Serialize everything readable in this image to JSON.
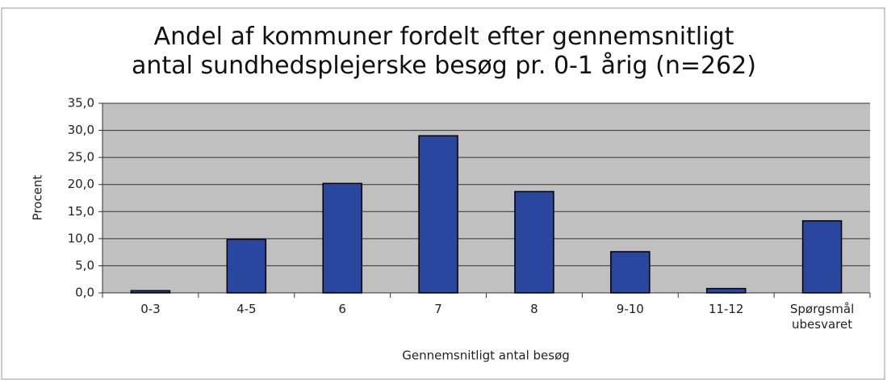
{
  "chart_data": {
    "type": "bar",
    "title": "Andel af kommuner fordelt efter gennemsnitligt antal sundhedsplejerske besøg pr. 0-1 årig (n=262)",
    "y_label": "Procent",
    "x_label": "Gennemsnitligt antal besøg",
    "categories": [
      "0-3",
      "4-5",
      "6",
      "7",
      "8",
      "9-10",
      "11-12",
      "Spørgsmål ubesvaret"
    ],
    "values": [
      0.4,
      9.9,
      20.2,
      29.0,
      18.7,
      7.6,
      0.8,
      13.3
    ],
    "color": "#2a47a0",
    "ylim": [
      0,
      35
    ],
    "yticks": [
      {
        "value": 0,
        "label": "0,0"
      },
      {
        "value": 5,
        "label": "5,0"
      },
      {
        "value": 10,
        "label": "10,0"
      },
      {
        "value": 15,
        "label": "15,0"
      },
      {
        "value": 20,
        "label": "20,0"
      },
      {
        "value": 25,
        "label": "25,0"
      },
      {
        "value": 30,
        "label": "30,0"
      },
      {
        "value": 35,
        "label": "35,0"
      }
    ],
    "grid": true
  }
}
